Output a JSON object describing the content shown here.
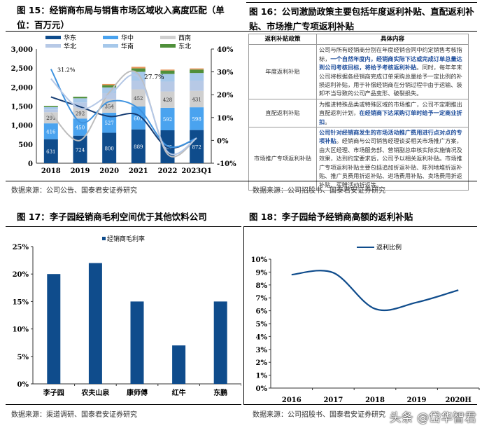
{
  "fig15": {
    "title": "图 15：经销商布局与销售市场区域收入高度匹配（单位：百万元）",
    "source": "数据来源：公司公告、国泰君安证券研究",
    "chart_data": {
      "type": "bar",
      "stacked": true,
      "categories": [
        "2018",
        "2019",
        "2020",
        "2021",
        "2022",
        "2023Q1"
      ],
      "ylim": [
        0,
        3000
      ],
      "yticks": [
        "0",
        "500",
        "1,000",
        "1,500",
        "2,000",
        "2,500",
        "3,000"
      ],
      "y2lim": [
        -10,
        40
      ],
      "y2ticks": [
        "-10%",
        "0%",
        "10%",
        "20%",
        "30%",
        "40%"
      ],
      "legend_position": "top",
      "series": [
        {
          "name": "华东",
          "color": "#0f4c8c",
          "values": [
            631,
            724,
            800,
            889,
            865,
            872
          ],
          "labels": [
            "631",
            "724",
            "800",
            "889",
            "865",
            "872"
          ]
        },
        {
          "name": "华中",
          "color": "#4aa3ef",
          "values": [
            416,
            450,
            527,
            601,
            592,
            598
          ],
          "labels": [
            "416",
            "450",
            "527",
            "601",
            "592",
            "598"
          ]
        },
        {
          "name": "西南",
          "color": "#cfcfcf",
          "values": [
            291,
            292,
            354,
            452,
            428,
            431
          ],
          "labels": [
            "291",
            "292",
            "354",
            "452",
            "428",
            "431"
          ]
        },
        {
          "name": "华北",
          "color": "#b7c9e6",
          "values": [
            75,
            130,
            160,
            230,
            260,
            270
          ]
        },
        {
          "name": "华南",
          "color": "#a6c8ea",
          "values": [
            60,
            110,
            150,
            230,
            200,
            200
          ]
        },
        {
          "name": "东北",
          "color": "#4f8f3a",
          "values": [
            30,
            40,
            60,
            90,
            90,
            90
          ]
        },
        {
          "name": "",
          "color": "#e8955a",
          "values": [
            0,
            0,
            30,
            40,
            25,
            30
          ]
        }
      ],
      "lines": [
        {
          "color": "#163d73",
          "values": [
            19,
            14.7,
            10.5,
            11,
            -3,
            1
          ]
        },
        {
          "color": "#3f93e0",
          "values": [
            31.2,
            8,
            17,
            14,
            -2.5,
            1
          ]
        },
        {
          "color": "#bdbdbd",
          "values": [
            12,
            0,
            21,
            29,
            -6,
            1
          ]
        },
        {
          "color": "#b5c8e6",
          "values": [
            27,
            14,
            20,
            27.7,
            -5,
            1
          ]
        }
      ],
      "annotations": [
        "31.2%",
        "27.7%"
      ]
    }
  },
  "fig16": {
    "title": "图 16：公司激励政策主要包括年度返利补贴、直配返利补贴、市场推广专项返利补贴",
    "source": "数据来源：公司招股书、国泰君安证券研究",
    "headers": [
      "返利补贴政策",
      "具体内容"
    ],
    "rows": [
      {
        "policy": "年度返利补贴",
        "pre": "公司与所有经销商分别在年度经销合同中约定销售考核指标，",
        "hl": "一个自然年度内，经销商实际下达或完成订单总量达到公司考核目标，将给予考核返利补贴",
        "post": "。同时，每年年末公司将根据各经销商完成订单采购总量给予一定比例的补损返利补贴，用于补偿经销商在分销过程中由于运输、装卸不当导致的公司产品变形、破裂损失。"
      },
      {
        "policy": "直配返利补贴",
        "pre": "为推进特殊品类或特殊区域的市场推广，公司不定期推出直配返利计划，",
        "hl": "在经销商下达采购订单时给予一定商业折扣",
        "post": "。"
      },
      {
        "policy": "市场推广专项返利补贴",
        "pre": "",
        "hl": "公司针对经销商发生的市场活动推广费用进行点对点的专项补贴",
        "post": "。经销商与公司销售经理谈妥相关市场推广方案，由大区经理、市场服务部、营销副总审核实际实施情况及效果，达到约定要求后，公司予以相关返利补贴。市场推广专项返利补贴主要包括追加折返补贴、陈列地堆折返补贴、推广员费用折返补贴、进场费用补贴、卖场费用折返补贴、买赠活动折返等。"
      }
    ]
  },
  "fig17": {
    "title": "图 17：李子园经销商毛利空间优于其他饮料公司",
    "source": "数据来源：渠道调研、国泰君安证券研究",
    "chart_data": {
      "type": "bar",
      "categories": [
        "李子园",
        "农夫山泉",
        "康师傅",
        "红牛",
        "东鹏"
      ],
      "series": [
        {
          "name": "经销商毛利率",
          "color": "#0f4c8c",
          "values": [
            20,
            22,
            15,
            7,
            15
          ]
        }
      ],
      "ylim": [
        0,
        25
      ],
      "yticks": [
        "0%",
        "5%",
        "10%",
        "15%",
        "20%",
        "25%"
      ],
      "legend_position": "top"
    }
  },
  "fig18": {
    "title": "图 18：李子园给予经销商高额的返利补贴",
    "source": "数据来源：公司招股书、国泰君安证券研究",
    "chart_data": {
      "type": "line",
      "categories": [
        "2016",
        "2017",
        "2018",
        "2019",
        "2020H"
      ],
      "series": [
        {
          "name": "返利比例",
          "color": "#0f4c8c",
          "values": [
            8.8,
            8.95,
            6.15,
            6.65,
            7.6
          ]
        }
      ],
      "ylim": [
        0,
        10
      ],
      "yticks": [
        "0%",
        "1%",
        "2%",
        "3%",
        "4%",
        "5%",
        "6%",
        "7%",
        "8%",
        "9%",
        "10%"
      ],
      "legend_position": "top"
    }
  },
  "watermark": "头条 @岱华智君"
}
